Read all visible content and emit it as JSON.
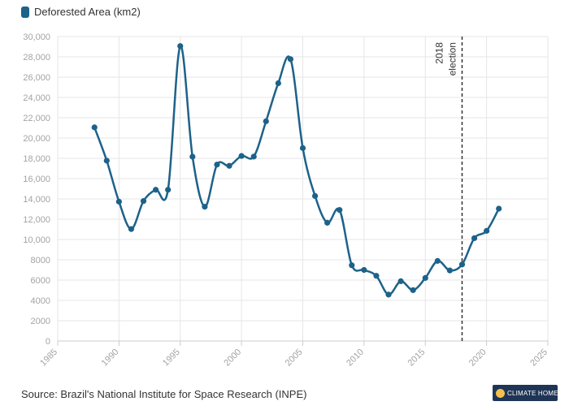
{
  "chart_data": {
    "type": "line",
    "legend": "Deforested Area (km2)",
    "colors": {
      "series": "#1d6289",
      "grid": "#e6e6e6",
      "tick": "#a3a3a3",
      "marker_line": "#333333"
    },
    "x": [
      1988,
      1989,
      1990,
      1991,
      1992,
      1993,
      1994,
      1995,
      1996,
      1997,
      1998,
      1999,
      2000,
      2001,
      2002,
      2003,
      2004,
      2005,
      2006,
      2007,
      2008,
      2009,
      2010,
      2011,
      2012,
      2013,
      2014,
      2015,
      2016,
      2017,
      2018,
      2019,
      2020,
      2021
    ],
    "series": [
      {
        "values": [
          21050,
          17770,
          13730,
          11030,
          13790,
          14900,
          14900,
          29060,
          18160,
          13230,
          17380,
          17260,
          18230,
          18170,
          21650,
          25400,
          27770,
          19010,
          14290,
          11650,
          12910,
          7460,
          7000,
          6420,
          4570,
          5890,
          5010,
          6210,
          7890,
          6950,
          7540,
          10130,
          10850,
          13040
        ]
      }
    ],
    "xlim": [
      1985,
      2025
    ],
    "ylim": [
      0,
      30000
    ],
    "xticks": [
      "1985",
      "1990",
      "1995",
      "2000",
      "2005",
      "2010",
      "2015",
      "2020",
      "2025"
    ],
    "yticks": [
      "0",
      "2000",
      "4000",
      "6000",
      "8000",
      "10,000",
      "12,000",
      "14,000",
      "16,000",
      "18,000",
      "20,000",
      "22,000",
      "24,000",
      "26,000",
      "28,000",
      "30,000"
    ],
    "grid": true,
    "annotation": {
      "x": 2018,
      "label_line1": "2018",
      "label_line2": "election",
      "style": "dashed-vertical-line"
    }
  },
  "footer": {
    "source": "Source: Brazil's National Institute for Space Research (INPE)",
    "logo_text": "CLIMATE HOME",
    "logo_icon": "climate-home-logo-icon"
  }
}
